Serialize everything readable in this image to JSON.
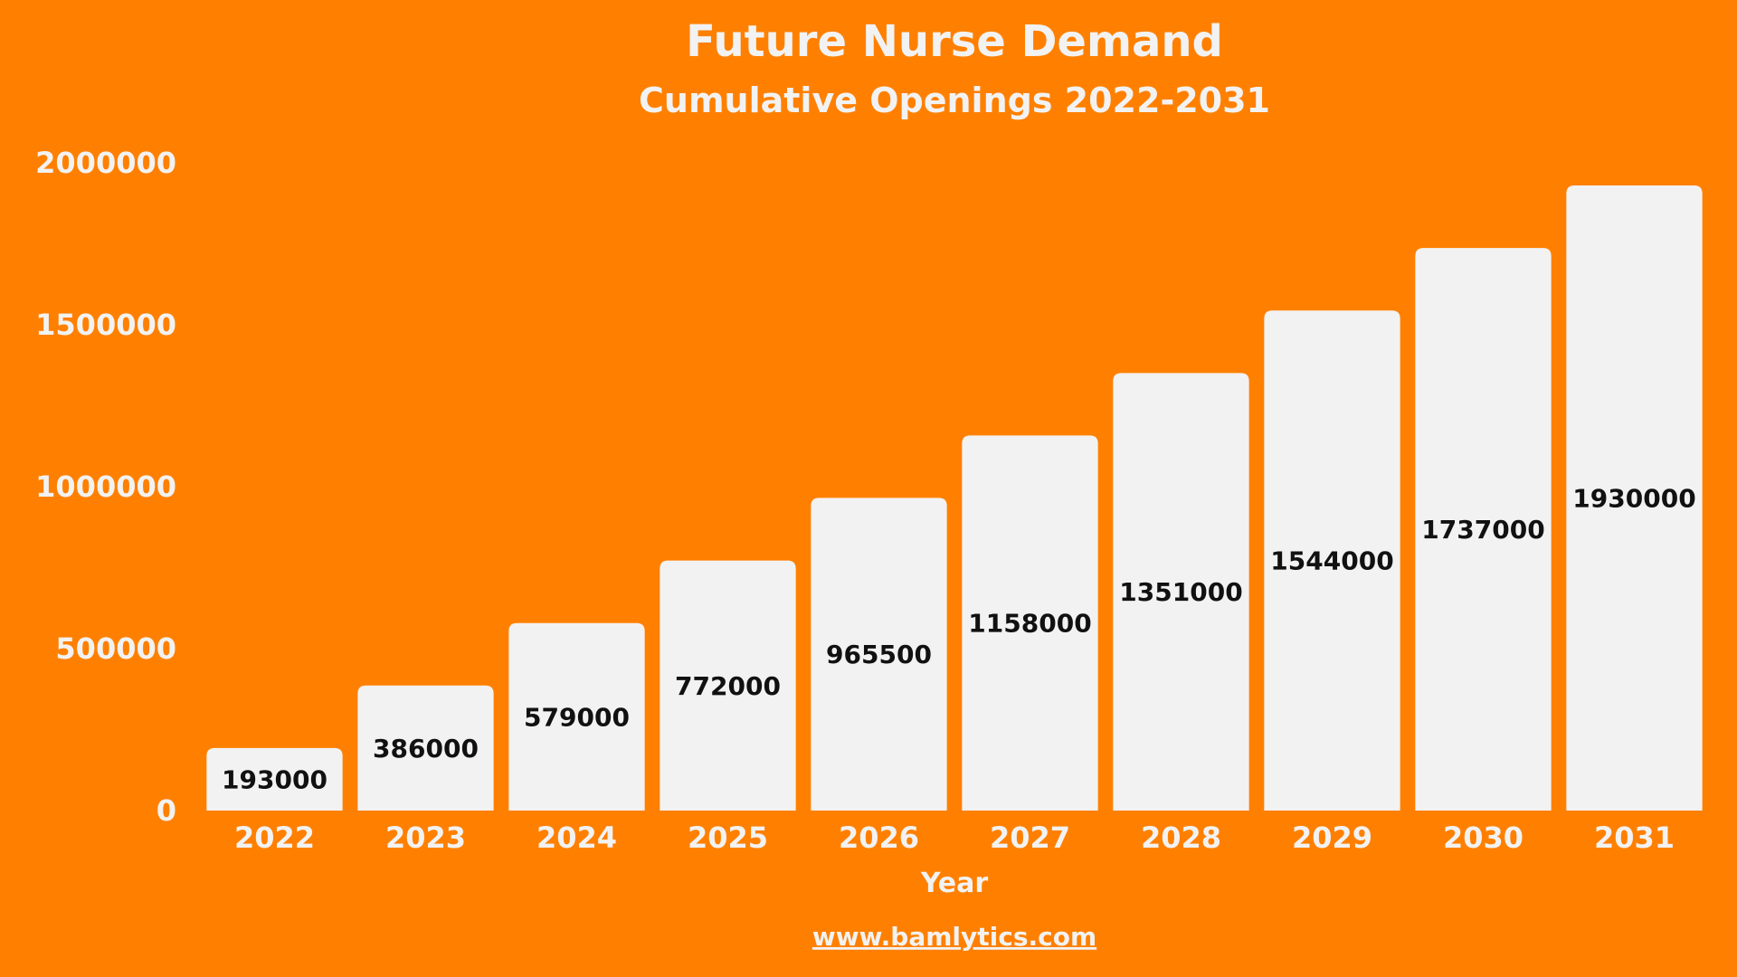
{
  "chart_data": {
    "type": "bar",
    "title": "Future Nurse Demand",
    "subtitle": "Cumulative Openings 2022-2031",
    "xlabel": "Year",
    "ylabel": "",
    "categories": [
      "2022",
      "2023",
      "2024",
      "2025",
      "2026",
      "2027",
      "2028",
      "2029",
      "2030",
      "2031"
    ],
    "values": [
      193000,
      386000,
      579000,
      772000,
      965500,
      1158000,
      1351000,
      1544000,
      1737000,
      1930000
    ],
    "value_labels": [
      "193000",
      "386000",
      "579000",
      "772000",
      "965500",
      "1158000",
      "1351000",
      "1544000",
      "1737000",
      "1930000"
    ],
    "yticks": [
      0,
      500000,
      1000000,
      1500000,
      2000000
    ],
    "ytick_labels": [
      "0",
      "500000",
      "1000000",
      "1500000",
      "2000000"
    ],
    "ylim": [
      0,
      2000000
    ],
    "grid": false,
    "legend": "none",
    "colors": {
      "background": "#FF8000",
      "bar": "#F2F2F2",
      "text_light": "#F2F2F2",
      "bar_label": "#111111"
    }
  },
  "footer": {
    "source": "www.bamlytics.com"
  }
}
